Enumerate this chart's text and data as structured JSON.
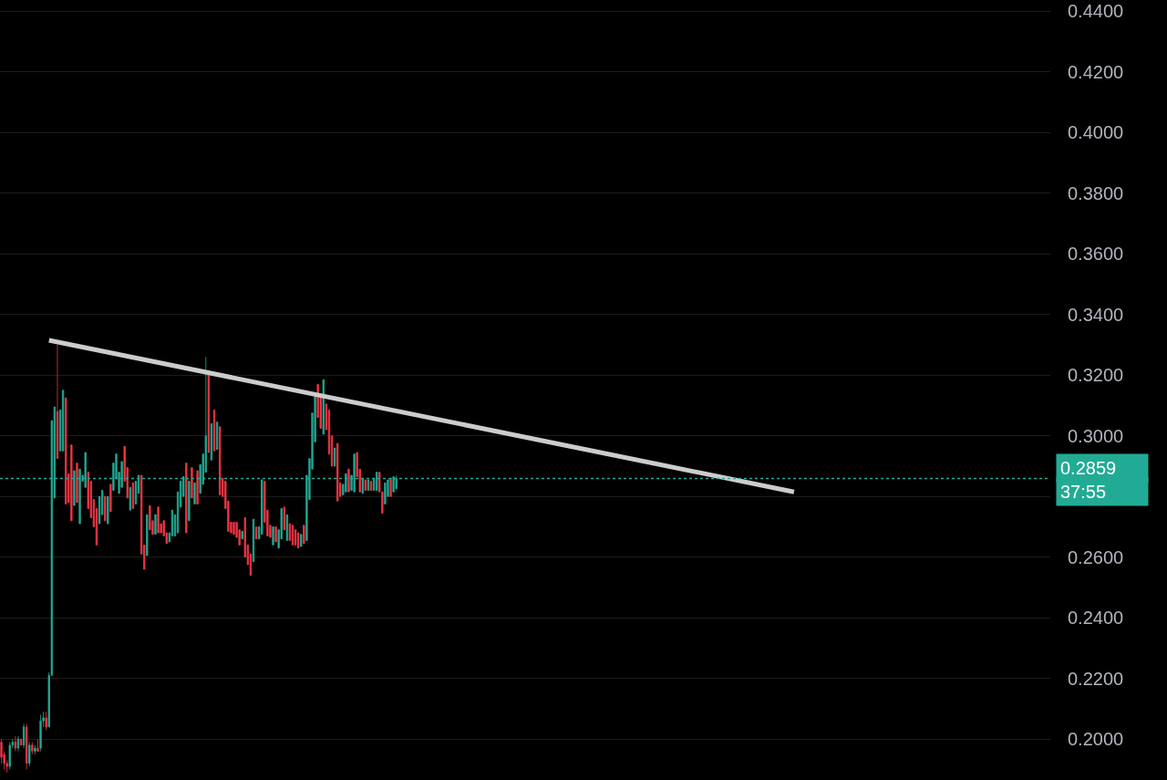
{
  "chart_data": {
    "type": "candlestick",
    "categories": [
      null,
      null,
      null,
      null,
      null,
      null,
      null,
      null,
      null,
      null,
      null,
      null,
      null,
      null,
      null,
      null,
      null,
      null,
      null,
      null,
      null,
      null,
      null,
      null,
      null,
      null,
      null,
      null,
      null,
      null,
      null,
      null,
      null,
      null,
      null,
      null,
      null,
      null,
      null,
      null,
      null,
      null,
      null,
      null,
      null,
      null,
      null,
      null,
      null,
      null,
      null,
      null,
      null,
      null,
      null,
      null,
      null,
      null,
      null,
      null,
      null,
      null,
      null,
      null,
      null,
      null,
      null,
      null,
      null,
      null,
      null,
      null,
      null,
      null,
      null,
      null,
      null,
      null,
      null,
      null,
      null,
      null,
      null,
      null,
      null,
      null,
      null,
      null,
      null,
      null,
      null,
      null,
      null,
      null,
      null,
      null,
      null,
      null,
      null,
      null,
      null,
      null,
      null,
      null,
      null,
      null,
      null,
      null,
      null,
      null,
      null,
      null,
      null,
      null,
      null,
      null,
      null,
      null,
      null,
      null,
      null,
      null,
      null,
      null,
      null,
      null,
      null,
      null,
      null,
      null,
      null,
      null,
      null,
      null,
      null,
      null,
      null,
      null,
      null,
      null,
      null,
      null,
      null,
      null,
      null,
      null,
      null,
      null,
      null,
      null,
      null,
      null,
      null,
      null,
      null,
      null,
      null,
      null,
      null,
      null,
      null,
      null,
      null,
      null,
      null,
      null,
      null,
      null,
      null,
      null,
      null,
      null,
      null,
      null,
      null,
      null,
      null,
      null,
      null,
      null,
      null,
      null,
      null,
      null,
      null,
      null,
      null,
      null,
      null,
      null,
      null,
      null,
      null,
      null,
      null,
      null,
      null,
      null,
      null,
      null,
      null,
      null,
      null,
      null,
      null,
      null,
      null,
      null,
      null,
      null,
      null,
      null,
      null,
      null,
      null,
      null,
      null,
      null,
      null,
      null,
      null,
      null,
      null,
      null,
      null,
      null,
      null,
      null,
      null,
      null,
      null,
      null,
      null,
      null,
      null,
      null,
      null,
      null,
      null,
      null,
      null,
      null,
      null,
      null,
      null,
      null,
      null,
      null,
      null,
      null,
      null,
      null,
      null,
      null,
      null,
      null,
      null,
      null,
      null,
      null,
      null,
      null,
      null,
      null,
      null,
      null,
      null,
      null,
      null,
      null,
      null,
      null,
      null,
      null,
      null,
      null,
      null,
      null,
      null,
      null,
      null,
      null,
      null,
      null,
      null,
      null,
      null,
      null,
      null,
      null,
      null,
      null,
      null,
      null,
      null,
      null,
      null,
      null,
      null,
      null,
      null,
      null,
      null,
      null,
      null,
      null,
      null,
      null,
      null,
      null,
      null,
      null,
      null,
      null,
      null,
      null,
      null,
      null,
      null,
      null,
      null,
      null,
      null,
      null,
      null,
      null,
      null,
      null,
      null,
      null,
      null,
      null,
      null,
      null,
      null,
      null,
      null,
      null,
      null,
      null,
      null,
      null,
      null,
      null,
      null,
      null,
      null,
      null,
      null,
      null,
      null,
      null,
      null,
      null,
      null,
      null,
      null,
      null,
      null,
      null,
      null,
      null,
      null,
      null,
      null,
      null,
      null,
      null,
      null,
      null,
      null,
      null,
      null,
      null,
      null
    ],
    "series": [
      {
        "colors": [
          "#f23645",
          "#f23645",
          "#f23645",
          "#22ab94",
          "#22ab94",
          "#f23645",
          "#22ab94",
          "#f23645",
          "#22ab94",
          "#f23645",
          "#22ab94",
          "#f23645",
          "#22ab94",
          "#f23645",
          "#22ab94",
          "#22ab94",
          "#f23645",
          "#22ab94",
          "#22ab94",
          "#22ab94",
          "#f23645",
          "#22ab94",
          "#22ab94",
          "#f23645",
          "#f23645",
          "#f23645",
          "#22ab94",
          "#f23645",
          "#22ab94",
          "#22ab94",
          "#22ab94",
          "#f23645",
          "#f23645",
          "#f23645",
          "#f23645",
          "#22ab94",
          "#22ab94",
          "#f23645",
          "#22ab94",
          "#f23645",
          "#22ab94",
          "#22ab94",
          "#22ab94",
          "#22ab94",
          "#f23645",
          "#f23645",
          "#22ab94",
          "#f23645",
          "#22ab94",
          "#22ab94",
          "#f23645",
          "#f23645",
          "#22ab94",
          "#f23645",
          "#f23645",
          "#22ab94",
          "#f23645",
          "#f23645",
          "#f23645",
          "#f23645",
          "#22ab94",
          "#22ab94",
          "#22ab94",
          "#22ab94",
          "#22ab94",
          "#22ab94",
          "#f23645",
          "#22ab94",
          "#f23645",
          "#22ab94",
          "#f23645",
          "#22ab94",
          "#22ab94",
          "#22ab94",
          "#f23645",
          "#22ab94",
          "#f23645",
          "#22ab94",
          "#f23645",
          "#f23645",
          "#f23645",
          "#f23645",
          "#f23645",
          "#f23645",
          "#f23645",
          "#f23645",
          "#22ab94",
          "#f23645",
          "#f23645",
          "#f23645",
          "#22ab94",
          "#f23645",
          "#22ab94",
          "#22ab94",
          "#f23645",
          "#f23645",
          "#f23645",
          "#22ab94",
          "#f23645",
          "#22ab94",
          "#22ab94",
          "#f23645",
          "#22ab94",
          "#f23645",
          "#f23645",
          "#f23645",
          "#f23645",
          "#22ab94",
          "#f23645",
          "#22ab94",
          "#22ab94",
          "#22ab94",
          "#22ab94",
          "#f23645",
          "#f23645",
          "#22ab94",
          "#f23645",
          "#f23645",
          "#f23645",
          "#22ab94",
          "#f23645",
          "#f23645",
          "#22ab94",
          "#22ab94",
          "#f23645",
          "#22ab94",
          "#22ab94",
          "#f23645",
          "#f23645",
          "#22ab94",
          "#f23645",
          "#22ab94",
          "#f23645",
          "#22ab94",
          "#22ab94",
          "#f23645",
          "#f23645",
          "#22ab94",
          "#22ab94",
          "#f23645",
          "#22ab94",
          "#22ab94",
          null,
          null,
          null,
          null,
          null,
          null,
          null,
          null,
          null,
          null,
          null,
          null,
          null,
          null,
          null,
          null,
          null,
          null,
          null,
          null,
          null,
          null,
          null,
          null,
          null,
          null,
          null,
          null,
          null,
          null,
          null,
          null,
          null,
          null,
          null,
          null,
          null,
          null,
          null,
          null,
          null,
          null,
          null,
          null,
          null,
          null,
          null,
          null,
          null,
          null,
          null,
          null,
          null,
          null,
          null,
          null,
          null,
          null,
          null,
          null,
          null,
          null,
          null,
          null,
          null,
          null,
          null,
          null,
          null,
          null,
          null,
          null,
          null,
          null,
          null,
          null,
          null,
          null,
          null,
          null,
          null,
          null,
          null,
          null,
          null,
          null,
          null,
          null,
          null,
          null,
          null,
          null,
          null,
          null,
          null,
          null,
          null,
          null,
          null,
          null,
          null,
          null,
          null,
          null,
          null,
          null,
          null,
          null,
          null,
          null,
          null,
          null,
          null,
          null,
          null,
          null,
          null,
          null,
          null,
          null,
          null,
          null,
          null,
          null,
          null,
          null,
          null,
          null,
          null,
          null,
          null,
          null,
          null,
          null,
          null,
          null,
          null,
          null,
          null,
          null,
          null,
          null,
          null,
          null,
          null,
          null,
          null,
          null,
          null,
          null,
          null,
          null,
          null,
          null,
          null,
          null,
          null,
          null,
          null,
          null,
          null,
          null,
          null,
          null,
          null,
          null,
          null,
          null,
          null,
          null,
          null,
          null,
          null,
          null,
          null,
          null,
          null,
          null,
          null,
          null,
          null,
          null,
          null,
          null,
          null,
          null,
          null,
          null,
          null,
          null,
          null,
          null,
          null,
          null,
          null,
          null,
          null,
          null,
          null,
          null,
          null,
          null,
          null,
          null,
          null,
          null,
          null,
          null,
          null,
          null,
          null,
          null,
          null,
          null,
          null,
          null,
          null,
          null,
          null,
          null,
          null,
          null,
          null,
          null,
          null,
          null,
          null,
          null,
          null,
          null,
          null,
          null,
          null
        ],
        "ohlc": [
          [
            0.199,
            0.2,
            0.192,
            0.194
          ],
          [
            0.195,
            0.196,
            0.19,
            0.192
          ],
          [
            0.192,
            0.193,
            0.189,
            0.191
          ],
          [
            0.191,
            0.199,
            0.19,
            0.198
          ],
          [
            0.198,
            0.2,
            0.197,
            0.199
          ],
          [
            0.199,
            0.201,
            0.196,
            0.197
          ],
          [
            0.197,
            0.201,
            0.196,
            0.2
          ],
          [
            0.2,
            0.2,
            0.198,
            0.198
          ],
          [
            0.198,
            0.205,
            0.197,
            0.204
          ],
          [
            0.204,
            0.205,
            0.19,
            0.192
          ],
          [
            0.192,
            0.199,
            0.191,
            0.198
          ],
          [
            0.198,
            0.199,
            0.195,
            0.196
          ],
          [
            0.196,
            0.198,
            0.195,
            0.197
          ],
          [
            0.197,
            0.2,
            0.196,
            0.196
          ],
          [
            0.197,
            0.208,
            0.196,
            0.206
          ],
          [
            0.206,
            0.209,
            0.204,
            0.207
          ],
          [
            0.207,
            0.209,
            0.203,
            0.204
          ],
          [
            0.204,
            0.222,
            0.204,
            0.221
          ],
          [
            0.221,
            0.305,
            0.221,
            0.305
          ],
          [
            0.2795,
            0.3095,
            0.2795,
            0.3095
          ],
          [
            0.308,
            0.33,
            0.2925,
            0.2925
          ],
          [
            0.295,
            0.3085,
            0.295,
            0.3085
          ],
          [
            0.295,
            0.315,
            0.295,
            0.315
          ],
          [
            0.3125,
            0.3125,
            0.2775,
            0.2775
          ],
          [
            0.2875,
            0.2875,
            0.278,
            0.278
          ],
          [
            0.297,
            0.297,
            0.272,
            0.272
          ],
          [
            0.277,
            0.2885,
            0.277,
            0.2885
          ],
          [
            0.291,
            0.291,
            0.278,
            0.278
          ],
          [
            0.271,
            0.289,
            0.271,
            0.289
          ],
          [
            0.285,
            0.287,
            0.285,
            0.287
          ],
          [
            0.283,
            0.2945,
            0.283,
            0.2945
          ],
          [
            0.288,
            0.288,
            0.276,
            0.276
          ],
          [
            0.285,
            0.285,
            0.273,
            0.273
          ],
          [
            0.279,
            0.279,
            0.27,
            0.27
          ],
          [
            0.276,
            0.276,
            0.264,
            0.264
          ],
          [
            0.271,
            0.28,
            0.271,
            0.28
          ],
          [
            0.274,
            0.282,
            0.274,
            0.282
          ],
          [
            0.28,
            0.28,
            0.272,
            0.272
          ],
          [
            0.271,
            0.28,
            0.271,
            0.28
          ],
          [
            0.284,
            0.284,
            0.275,
            0.275
          ],
          [
            0.282,
            0.291,
            0.282,
            0.291
          ],
          [
            0.286,
            0.294,
            0.286,
            0.294
          ],
          [
            0.281,
            0.288,
            0.281,
            0.288
          ],
          [
            0.283,
            0.2915,
            0.283,
            0.2915
          ],
          [
            0.2965,
            0.2965,
            0.285,
            0.285
          ],
          [
            0.2895,
            0.2895,
            0.2795,
            0.2795
          ],
          [
            0.2755,
            0.283,
            0.2755,
            0.283
          ],
          [
            0.2845,
            0.2845,
            0.276,
            0.276
          ],
          [
            0.2775,
            0.285,
            0.2775,
            0.285
          ],
          [
            0.281,
            0.287,
            0.281,
            0.287
          ],
          [
            0.287,
            0.287,
            0.261,
            0.261
          ],
          [
            0.264,
            0.264,
            0.256,
            0.256
          ],
          [
            0.2605,
            0.274,
            0.2605,
            0.274
          ],
          [
            0.277,
            0.277,
            0.269,
            0.269
          ],
          [
            0.272,
            0.272,
            0.2675,
            0.2675
          ],
          [
            0.2675,
            0.274,
            0.2675,
            0.274
          ],
          [
            0.2765,
            0.2765,
            0.268,
            0.268
          ],
          [
            0.271,
            0.271,
            0.268,
            0.268
          ],
          [
            0.272,
            0.272,
            0.267,
            0.267
          ],
          [
            0.268,
            0.268,
            0.2645,
            0.2645
          ],
          [
            0.265,
            0.268,
            0.265,
            0.268
          ],
          [
            0.267,
            0.2755,
            0.267,
            0.2755
          ],
          [
            0.267,
            0.274,
            0.267,
            0.274
          ],
          [
            0.268,
            0.2815,
            0.268,
            0.2815
          ],
          [
            0.2765,
            0.285,
            0.2765,
            0.285
          ],
          [
            0.28,
            0.2865,
            0.28,
            0.2865
          ],
          [
            0.291,
            0.291,
            0.268,
            0.268
          ],
          [
            0.272,
            0.285,
            0.272,
            0.285
          ],
          [
            0.2895,
            0.2895,
            0.2795,
            0.2795
          ],
          [
            0.2775,
            0.2845,
            0.2775,
            0.2845
          ],
          [
            0.2885,
            0.2885,
            0.2775,
            0.2775
          ],
          [
            0.281,
            0.2905,
            0.281,
            0.2905
          ],
          [
            0.284,
            0.294,
            0.284,
            0.294
          ],
          [
            0.288,
            0.326,
            0.288,
            0.3
          ],
          [
            0.3205,
            0.3205,
            0.2945,
            0.2945
          ],
          [
            0.292,
            0.304,
            0.292,
            0.304
          ],
          [
            0.3085,
            0.3085,
            0.295,
            0.295
          ],
          [
            0.2955,
            0.3045,
            0.2955,
            0.3045
          ],
          [
            0.303,
            0.303,
            0.2805,
            0.2805
          ],
          [
            0.286,
            0.286,
            0.28,
            0.28
          ],
          [
            0.285,
            0.285,
            0.276,
            0.276
          ],
          [
            0.2785,
            0.2785,
            0.2685,
            0.2685
          ],
          [
            0.2715,
            0.2715,
            0.268,
            0.268
          ],
          [
            0.2715,
            0.2715,
            0.2675,
            0.2675
          ],
          [
            0.2715,
            0.2715,
            0.2665,
            0.2665
          ],
          [
            0.269,
            0.269,
            0.264,
            0.264
          ],
          [
            0.266,
            0.2685,
            0.266,
            0.2685
          ],
          [
            0.273,
            0.273,
            0.26,
            0.26
          ],
          [
            0.264,
            0.264,
            0.2575,
            0.2575
          ],
          [
            0.261,
            0.261,
            0.254,
            0.254
          ],
          [
            0.2585,
            0.2725,
            0.2585,
            0.2725
          ],
          [
            0.27,
            0.27,
            0.266,
            0.266
          ],
          [
            0.266,
            0.27,
            0.266,
            0.27
          ],
          [
            0.2675,
            0.2855,
            0.2675,
            0.2855
          ],
          [
            0.285,
            0.285,
            0.2715,
            0.2715
          ],
          [
            0.2755,
            0.2755,
            0.267,
            0.267
          ],
          [
            0.2705,
            0.2705,
            0.2665,
            0.2665
          ],
          [
            0.264,
            0.27,
            0.264,
            0.27
          ],
          [
            0.27,
            0.27,
            0.265,
            0.265
          ],
          [
            0.263,
            0.269,
            0.263,
            0.269
          ],
          [
            0.266,
            0.276,
            0.266,
            0.276
          ],
          [
            0.2765,
            0.2765,
            0.269,
            0.269
          ],
          [
            0.2655,
            0.274,
            0.2655,
            0.274
          ],
          [
            0.271,
            0.271,
            0.2655,
            0.2655
          ],
          [
            0.2705,
            0.2705,
            0.264,
            0.264
          ],
          [
            0.269,
            0.269,
            0.264,
            0.264
          ],
          [
            0.268,
            0.268,
            0.263,
            0.263
          ],
          [
            0.2635,
            0.2675,
            0.2635,
            0.2675
          ],
          [
            0.2705,
            0.2705,
            0.2645,
            0.2645
          ],
          [
            0.2655,
            0.287,
            0.2655,
            0.287
          ],
          [
            0.279,
            0.2925,
            0.279,
            0.2925
          ],
          [
            0.289,
            0.3075,
            0.289,
            0.3075
          ],
          [
            0.298,
            0.313,
            0.298,
            0.313
          ],
          [
            0.317,
            0.317,
            0.306,
            0.306
          ],
          [
            0.3135,
            0.3135,
            0.3025,
            0.3025
          ],
          [
            0.3005,
            0.3185,
            0.3005,
            0.3185
          ],
          [
            0.3105,
            0.3105,
            0.302,
            0.302
          ],
          [
            0.3085,
            0.3085,
            0.294,
            0.294
          ],
          [
            0.3,
            0.3,
            0.29,
            0.29
          ],
          [
            0.29,
            0.296,
            0.29,
            0.296
          ],
          [
            0.2975,
            0.2975,
            0.2785,
            0.2785
          ],
          [
            0.2845,
            0.2845,
            0.28,
            0.28
          ],
          [
            0.2805,
            0.284,
            0.2805,
            0.284
          ],
          [
            0.2815,
            0.2875,
            0.2815,
            0.2875
          ],
          [
            0.289,
            0.289,
            0.2815,
            0.2815
          ],
          [
            0.282,
            0.287,
            0.282,
            0.287
          ],
          [
            0.2815,
            0.294,
            0.2815,
            0.294
          ],
          [
            0.2945,
            0.2945,
            0.2865,
            0.2865
          ],
          [
            0.289,
            0.289,
            0.2815,
            0.2815
          ],
          [
            0.281,
            0.286,
            0.281,
            0.286
          ],
          [
            0.2855,
            0.2855,
            0.282,
            0.282
          ],
          [
            0.282,
            0.2855,
            0.282,
            0.2855
          ],
          [
            0.285,
            0.285,
            0.282,
            0.282
          ],
          [
            0.282,
            0.286,
            0.282,
            0.286
          ],
          [
            0.282,
            0.288,
            0.282,
            0.288
          ],
          [
            0.288,
            0.288,
            0.2815,
            0.2815
          ],
          [
            0.2815,
            0.2815,
            0.2745,
            0.2745
          ],
          [
            0.2775,
            0.2845,
            0.2775,
            0.2845
          ],
          [
            0.28,
            0.2855,
            0.28,
            0.2855
          ],
          [
            0.286,
            0.286,
            0.28,
            0.28
          ],
          [
            0.2815,
            0.2865,
            0.2815,
            0.2865
          ],
          [
            0.2825,
            0.287,
            0.2825,
            0.2859
          ],
          null,
          null,
          null,
          null,
          null,
          null,
          null,
          null,
          null,
          null,
          null,
          null,
          null,
          null,
          null,
          null,
          null,
          null,
          null,
          null,
          null,
          null,
          null,
          null,
          null,
          null,
          null,
          null,
          null,
          null,
          null,
          null,
          null,
          null,
          null,
          null,
          null,
          null,
          null,
          null,
          null,
          null,
          null,
          null,
          null,
          null,
          null,
          null,
          null,
          null,
          null,
          null,
          null,
          null,
          null,
          null,
          null,
          null,
          null,
          null,
          null,
          null,
          null,
          null,
          null,
          null,
          null,
          null,
          null,
          null,
          null,
          null,
          null,
          null,
          null,
          null,
          null,
          null,
          null,
          null,
          null,
          null,
          null,
          null,
          null,
          null,
          null,
          null,
          null,
          null,
          null,
          null,
          null,
          null,
          null,
          null,
          null,
          null,
          null,
          null,
          null,
          null,
          null,
          null,
          null,
          null,
          null,
          null,
          null,
          null,
          null,
          null,
          null,
          null,
          null,
          null,
          null,
          null,
          null,
          null,
          null,
          null,
          null,
          null,
          null,
          null,
          null,
          null,
          null,
          null,
          null,
          null,
          null,
          null,
          null,
          null,
          null,
          null,
          null,
          null,
          null,
          null,
          null,
          null,
          null,
          null,
          null,
          null,
          null,
          null,
          null,
          null,
          null,
          null,
          null,
          null,
          null,
          null,
          null,
          null,
          null,
          null,
          null,
          null,
          null,
          null,
          null,
          null,
          null,
          null,
          null,
          null,
          null,
          null,
          null,
          null,
          null,
          null,
          null,
          null,
          null,
          null,
          null,
          null,
          null,
          null,
          null,
          null,
          null,
          null,
          null,
          null,
          null,
          null,
          null,
          null,
          null,
          null,
          null,
          null,
          null,
          null,
          null,
          null,
          null,
          null,
          null,
          null,
          null,
          null,
          null,
          null,
          null,
          null,
          null,
          null,
          null,
          null,
          null,
          null,
          null,
          null,
          null,
          null,
          null,
          null,
          null,
          null,
          null,
          null,
          null,
          null,
          null
        ]
      },
      {
        "type": "line",
        "color": "#cccccc",
        "values": [
          null,
          null,
          null,
          null,
          null,
          null,
          null,
          null,
          null,
          null,
          null,
          null,
          null,
          null,
          null,
          null,
          null,
          0.3315,
          null,
          null,
          null,
          null,
          null,
          null,
          null,
          null,
          null,
          null,
          null,
          null,
          null,
          null,
          null,
          null,
          null,
          null,
          null,
          null,
          null,
          null,
          null,
          null,
          null,
          null,
          null,
          null,
          null,
          null,
          null,
          null,
          null,
          null,
          null,
          null,
          null,
          null,
          null,
          null,
          null,
          null,
          null,
          null,
          null,
          null,
          null,
          null,
          null,
          null,
          null,
          null,
          null,
          null,
          null,
          null,
          null,
          null,
          null,
          null,
          null,
          null,
          null,
          null,
          null,
          null,
          null,
          null,
          null,
          null,
          null,
          null,
          null,
          null,
          null,
          null,
          null,
          null,
          null,
          null,
          null,
          null,
          null,
          null,
          null,
          null,
          null,
          null,
          null,
          null,
          null,
          null,
          null,
          null,
          null,
          null,
          null,
          null,
          null,
          null,
          null,
          null,
          null,
          null,
          null,
          null,
          null,
          null,
          null,
          null,
          null,
          null,
          null,
          null,
          null,
          null,
          null,
          null,
          null,
          null,
          null,
          null,
          null,
          null,
          null,
          null,
          null,
          null,
          null,
          null,
          null,
          null,
          null,
          null,
          null,
          null,
          null,
          null,
          null,
          null,
          null,
          null,
          null,
          null,
          null,
          null,
          null,
          null,
          null,
          null,
          null,
          null,
          null,
          null,
          null,
          null,
          null,
          null,
          null,
          null,
          null,
          null,
          null,
          null,
          null,
          null,
          null,
          null,
          null,
          null,
          null,
          null,
          null,
          null,
          null,
          null,
          null,
          null,
          null,
          null,
          null,
          null,
          null,
          null,
          null,
          null,
          null,
          null,
          null,
          null,
          null,
          null,
          null,
          null,
          null,
          null,
          null,
          null,
          null,
          null,
          null,
          null,
          null,
          null,
          null,
          null,
          null,
          null,
          null,
          null,
          null,
          null,
          null,
          null,
          null,
          null,
          null,
          null,
          null,
          null,
          null,
          null,
          null,
          null,
          null,
          null,
          null,
          null,
          null,
          null,
          null,
          null,
          null,
          null,
          null,
          null,
          null,
          null,
          null,
          null,
          null,
          null,
          null,
          null,
          null,
          null,
          null,
          null,
          null,
          null,
          null,
          null,
          null,
          null,
          null,
          null,
          null,
          null,
          null,
          null,
          null,
          null,
          null,
          null,
          null,
          0.2815,
          null,
          null,
          null,
          null,
          null,
          null,
          null,
          null,
          null,
          null,
          null,
          null,
          null,
          null,
          null,
          null,
          null,
          null,
          null,
          null,
          null,
          null,
          null,
          null,
          null,
          null,
          null,
          null,
          null,
          null,
          null,
          null,
          null,
          null,
          null,
          null,
          null,
          null,
          null,
          null,
          null,
          null,
          null,
          null,
          null,
          null,
          null,
          null,
          null,
          null,
          null,
          null,
          null,
          null,
          null,
          null,
          null,
          null,
          null,
          null,
          null,
          null,
          null,
          null,
          null,
          null,
          null,
          null,
          null,
          null,
          null,
          null,
          null,
          null,
          null,
          null,
          null,
          null,
          null,
          null,
          null,
          null,
          null,
          null,
          null,
          null,
          null,
          null,
          null,
          null,
          null
        ]
      }
    ],
    "ylim": [
      0.1865,
      0.4437
    ],
    "yticks": [
      {
        "value": 0.2,
        "label": "0.2000"
      },
      {
        "value": 0.22,
        "label": "0.2200"
      },
      {
        "value": 0.24,
        "label": "0.2400"
      },
      {
        "value": 0.26,
        "label": "0.2600"
      },
      {
        "value": 0.28,
        "label": null
      },
      {
        "value": 0.3,
        "label": "0.3000"
      },
      {
        "value": 0.32,
        "label": "0.3200"
      },
      {
        "value": 0.34,
        "label": "0.3400"
      },
      {
        "value": 0.36,
        "label": "0.3600"
      },
      {
        "value": 0.38,
        "label": "0.3800"
      },
      {
        "value": 0.4,
        "label": "0.4000"
      },
      {
        "value": 0.42,
        "label": "0.4200"
      },
      {
        "value": 0.44,
        "label": "0.4400"
      }
    ],
    "ref_lines": [
      {
        "axis": "y",
        "value": 0.2859,
        "label": "0.2859",
        "color": "#22ab94",
        "line_style": "dotted"
      }
    ],
    "annotations": [
      "37:55"
    ],
    "grid": "y",
    "tick_labels": "y"
  }
}
